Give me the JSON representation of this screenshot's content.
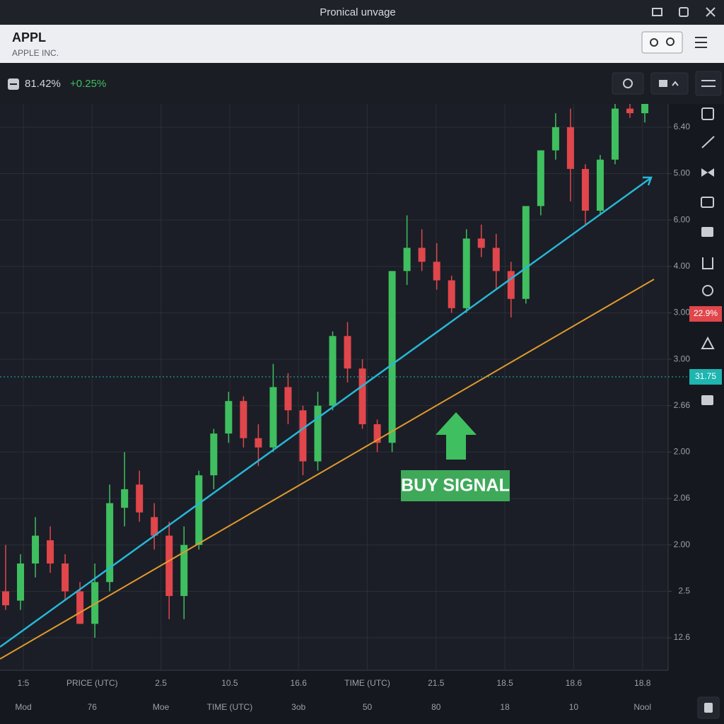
{
  "window": {
    "title": "Pronical unvage"
  },
  "header": {
    "symbol": "APPL",
    "name": "APPLE INC."
  },
  "toolbar": {
    "price": "81.42%",
    "change": "+0.25%"
  },
  "chart_data": {
    "type": "candlestick",
    "candles": [
      [
        1.0,
        2.0,
        0.6,
        0.7
      ],
      [
        0.8,
        1.8,
        0.6,
        1.6
      ],
      [
        1.6,
        2.6,
        1.3,
        2.2
      ],
      [
        2.1,
        2.4,
        1.4,
        1.6
      ],
      [
        1.6,
        1.8,
        0.8,
        1.0
      ],
      [
        1.0,
        1.2,
        0.3,
        0.3
      ],
      [
        0.3,
        1.6,
        0.0,
        1.2
      ],
      [
        1.2,
        3.3,
        1.0,
        2.9
      ],
      [
        2.8,
        4.0,
        2.4,
        3.2
      ],
      [
        3.3,
        3.6,
        2.5,
        2.7
      ],
      [
        2.6,
        2.9,
        1.9,
        2.2
      ],
      [
        2.2,
        2.5,
        0.4,
        0.9
      ],
      [
        0.9,
        2.4,
        0.4,
        2.0
      ],
      [
        2.0,
        3.6,
        1.9,
        3.5
      ],
      [
        3.5,
        4.5,
        3.2,
        4.4
      ],
      [
        4.4,
        5.3,
        4.2,
        5.1
      ],
      [
        5.1,
        5.2,
        4.1,
        4.3
      ],
      [
        4.3,
        4.6,
        3.7,
        4.1
      ],
      [
        4.1,
        5.9,
        4.0,
        5.4
      ],
      [
        5.4,
        5.7,
        4.6,
        4.9
      ],
      [
        4.9,
        5.0,
        3.5,
        3.8
      ],
      [
        3.8,
        5.3,
        3.6,
        5.0
      ],
      [
        5.0,
        6.6,
        4.9,
        6.5
      ],
      [
        6.5,
        6.8,
        5.5,
        5.8
      ],
      [
        5.8,
        6.0,
        4.5,
        4.6
      ],
      [
        4.6,
        4.7,
        4.0,
        4.2
      ],
      [
        4.2,
        7.9,
        4.0,
        7.9
      ],
      [
        7.9,
        9.1,
        7.6,
        8.4
      ],
      [
        8.4,
        8.8,
        7.9,
        8.1
      ],
      [
        8.1,
        8.5,
        7.5,
        7.7
      ],
      [
        7.7,
        7.8,
        7.0,
        7.1
      ],
      [
        7.1,
        8.8,
        7.0,
        8.6
      ],
      [
        8.6,
        8.9,
        8.2,
        8.4
      ],
      [
        8.4,
        8.7,
        7.5,
        7.9
      ],
      [
        7.9,
        8.1,
        6.9,
        7.3
      ],
      [
        7.3,
        9.3,
        7.2,
        9.3
      ],
      [
        9.3,
        10.5,
        9.1,
        10.5
      ],
      [
        10.5,
        11.3,
        10.3,
        11.0
      ],
      [
        11.0,
        11.4,
        9.4,
        10.1
      ],
      [
        10.1,
        10.2,
        8.9,
        9.2
      ],
      [
        9.2,
        10.4,
        9.1,
        10.3
      ],
      [
        10.3,
        11.5,
        10.2,
        11.4
      ],
      [
        11.4,
        11.5,
        11.2,
        11.3
      ],
      [
        11.3,
        11.5,
        11.1,
        11.5
      ]
    ],
    "colors": {
      "up": "#3fbf5f",
      "down": "#e0464b"
    },
    "ylim": [
      -0.7,
      11.5
    ],
    "yticks": [
      {
        "value": 11,
        "label": "6.40"
      },
      {
        "value": 10,
        "label": "5.00"
      },
      {
        "value": 9,
        "label": "6.00"
      },
      {
        "value": 8,
        "label": "4.00"
      },
      {
        "value": 7,
        "label": "3.00"
      },
      {
        "value": 6,
        "label": "3.00"
      },
      {
        "value": 5,
        "label": "2.66"
      },
      {
        "value": 4,
        "label": "2.00"
      },
      {
        "value": 3,
        "label": "2.06"
      },
      {
        "value": 2,
        "label": "2.00"
      },
      {
        "value": 1,
        "label": "2.5"
      },
      {
        "value": 0,
        "label": "12.6"
      }
    ],
    "grid": true,
    "x_labels": [
      "1:5",
      "PRICE (UTC)",
      "2.5",
      "10.5",
      "16.6",
      "TIME (UTC)",
      "21.5",
      "18.5",
      "18.6",
      "18.8"
    ],
    "x_labels_2": [
      "Mod",
      "76",
      "Moe",
      "TIME (UTC)",
      "3ob",
      "50",
      "80",
      "18",
      "10",
      "Nool"
    ],
    "annotation": "BUY SIGNAL",
    "price_tags": [
      "22.9%",
      "31.75"
    ]
  }
}
